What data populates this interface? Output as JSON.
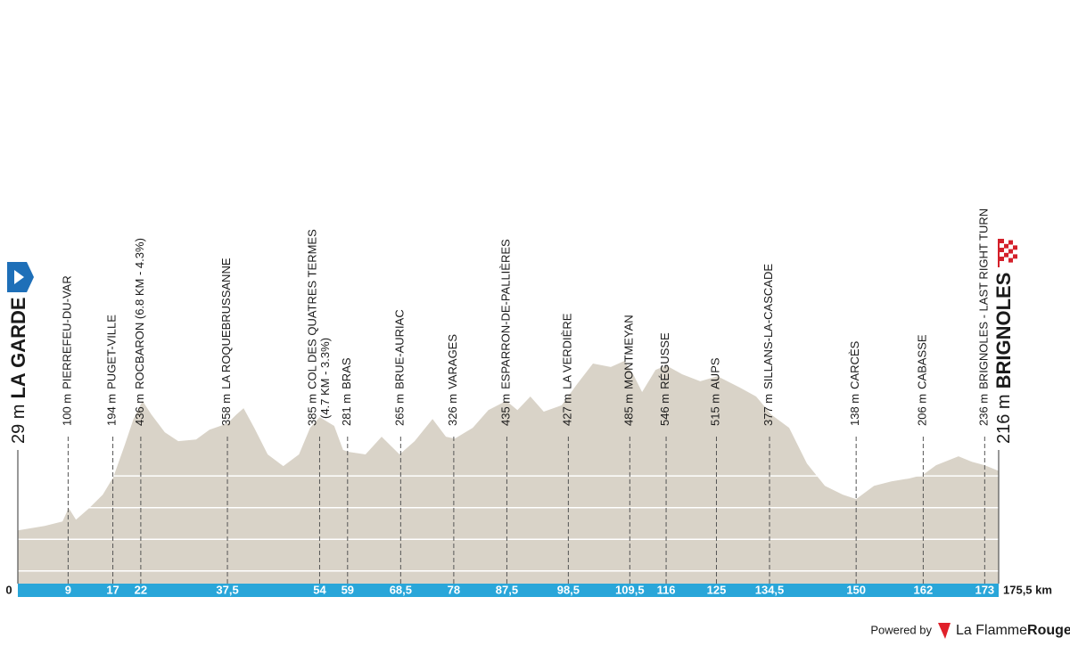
{
  "chart_data": {
    "type": "area",
    "color": "#d9d3c8",
    "bar_color": "#29a6d9",
    "x": [
      0,
      4.8,
      8,
      9.1,
      10.4,
      12.8,
      15.2,
      17.1,
      19.1,
      20.7,
      22.3,
      23.9,
      26.3,
      28.7,
      31.9,
      34.3,
      37.5,
      39.1,
      40.4,
      42.3,
      44.7,
      47.5,
      50.3,
      52.3,
      54,
      56.6,
      58.2,
      59.3,
      62.2,
      65.1,
      68.3,
      71,
      74.2,
      76.6,
      78.2,
      81.4,
      84.2,
      87.4,
      89.4,
      91.7,
      94.1,
      97.3,
      100.2,
      102.9,
      106.1,
      108.5,
      110.1,
      111.7,
      114.1,
      116,
      118.9,
      122.1,
      125.2,
      129.2,
      132.1,
      134.8,
      138,
      141.2,
      144.4,
      147.6,
      150,
      153.2,
      156.3,
      159.5,
      161.9,
      164.3,
      168.3,
      170.7,
      173,
      175.5
    ],
    "values": [
      28,
      42,
      56,
      99,
      62,
      99,
      141,
      197,
      296,
      380,
      437,
      394,
      338,
      310,
      315,
      346,
      366,
      394,
      414,
      352,
      268,
      231,
      268,
      352,
      386,
      358,
      282,
      276,
      268,
      324,
      268,
      310,
      380,
      324,
      318,
      352,
      408,
      437,
      408,
      451,
      403,
      423,
      493,
      555,
      544,
      563,
      521,
      465,
      535,
      549,
      521,
      499,
      515,
      479,
      451,
      394,
      352,
      239,
      169,
      141,
      127,
      169,
      183,
      192,
      203,
      234,
      262,
      245,
      234,
      216
    ],
    "xlim": [
      0,
      175.5
    ],
    "ylim": [
      -140,
      600
    ],
    "grid_lines": [
      -100,
      0,
      100,
      200
    ],
    "xticks": [
      0,
      9,
      17,
      22,
      {
        "value": 37.5,
        "label": "37,5"
      },
      54,
      59,
      {
        "value": 68.5,
        "label": "68,5"
      },
      78,
      {
        "value": 87.5,
        "label": "87,5"
      },
      {
        "value": 98.5,
        "label": "98,5"
      },
      {
        "value": 109.5,
        "label": "109,5"
      },
      116,
      125,
      {
        "value": 134.5,
        "label": "134,5"
      },
      150,
      162,
      173,
      {
        "value": 175.5,
        "label": "175,5 km"
      }
    ],
    "waypoints": [
      {
        "elevation": "29 m",
        "name": "LA GARDE"
      },
      {
        "elevation": "100 m",
        "name": "PIERREFEU-DU-VAR"
      },
      {
        "elevation": "194 m",
        "name": "PUGET-VILLE"
      },
      {
        "elevation": "436 m",
        "name": "ROCBARON (6.8 KM - 4.3%)"
      },
      {
        "elevation": "358 m",
        "name": "LA ROQUEBRUSSANNE"
      },
      {
        "elevation": "385 m",
        "name": "COL DES QUATRES TERMES",
        "note": "(4.7 KM - 3.3%)"
      },
      {
        "elevation": "281 m",
        "name": "BRAS"
      },
      {
        "elevation": "265 m",
        "name": "BRUE-AURIAC"
      },
      {
        "elevation": "326 m",
        "name": "VARAGES"
      },
      {
        "elevation": "435 m",
        "name": "ESPARRON-DE-PALLIÈRES"
      },
      {
        "elevation": "427 m",
        "name": "LA VERDIÈRE"
      },
      {
        "elevation": "485 m",
        "name": "MONTMEYAN"
      },
      {
        "elevation": "546 m",
        "name": "RÉGUSSE"
      },
      {
        "elevation": "515 m",
        "name": "AUPS"
      },
      {
        "elevation": "377 m",
        "name": "SILLANS-LA-CASCADE"
      },
      {
        "elevation": "138 m",
        "name": "CARCÈS"
      },
      {
        "elevation": "206 m",
        "name": "CABASSE"
      },
      {
        "elevation": "236 m",
        "name": "BRIGNOLES - LAST RIGHT TURN"
      },
      {
        "elevation": "216 m",
        "name": "BRIGNOLES"
      }
    ]
  },
  "footer": {
    "powered_by": "Powered by",
    "brand": "La Flamme",
    "brand_accent": "Rouge"
  }
}
